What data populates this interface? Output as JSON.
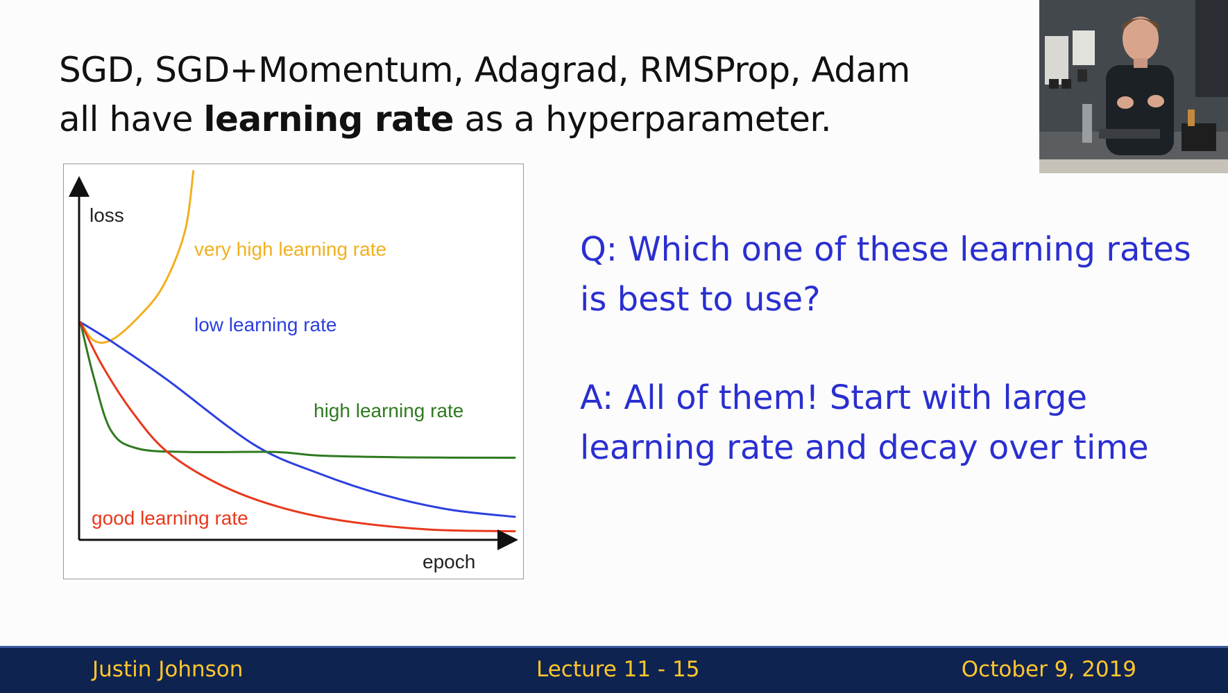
{
  "slide": {
    "title_line1": "SGD, SGD+Momentum, Adagrad, RMSProp, Adam",
    "title_line2_prefix": "all have ",
    "title_line2_bold": "learning rate",
    "title_line2_suffix": " as a hyperparameter.",
    "question_line1": "Q: Which one of these learning rates",
    "question_line2": "is best to use?",
    "answer_line1": "A: All of them! Start with large",
    "answer_line2": "learning rate and decay over time"
  },
  "footer": {
    "author": "Justin Johnson",
    "lecture": "Lecture 11 - 15",
    "date": "October 9, 2019"
  },
  "colors": {
    "very_high": "#f2b01e",
    "low": "#2b3fe0",
    "high": "#2e7a1f",
    "good": "#e8381c",
    "footer_bg": "#0f2350",
    "footer_text": "#ffc72c",
    "answer_text": "#2a2fd0"
  },
  "chart_data": {
    "type": "line",
    "xlabel": "epoch",
    "ylabel": "loss",
    "grid": false,
    "legend": "inline labels",
    "series": [
      {
        "name": "very high learning rate",
        "color": "#f2b01e",
        "points": [
          [
            0,
            0.6
          ],
          [
            0.03,
            0.55
          ],
          [
            0.07,
            0.55
          ],
          [
            0.13,
            0.61
          ],
          [
            0.19,
            0.7
          ],
          [
            0.24,
            0.85
          ],
          [
            0.26,
            1.02
          ]
        ]
      },
      {
        "name": "low learning rate",
        "color": "#2b3fe0",
        "points": [
          [
            0,
            0.6
          ],
          [
            0.08,
            0.54
          ],
          [
            0.2,
            0.44
          ],
          [
            0.4,
            0.26
          ],
          [
            0.55,
            0.18
          ],
          [
            0.7,
            0.12
          ],
          [
            0.85,
            0.08
          ],
          [
            1.0,
            0.06
          ]
        ]
      },
      {
        "name": "high learning rate",
        "color": "#2e7a1f",
        "points": [
          [
            0,
            0.6
          ],
          [
            0.03,
            0.45
          ],
          [
            0.07,
            0.3
          ],
          [
            0.13,
            0.25
          ],
          [
            0.25,
            0.24
          ],
          [
            0.45,
            0.24
          ],
          [
            0.55,
            0.23
          ],
          [
            0.75,
            0.225
          ],
          [
            1.0,
            0.224
          ]
        ]
      },
      {
        "name": "good learning rate",
        "color": "#e8381c",
        "points": [
          [
            0,
            0.6
          ],
          [
            0.05,
            0.48
          ],
          [
            0.12,
            0.35
          ],
          [
            0.2,
            0.24
          ],
          [
            0.32,
            0.15
          ],
          [
            0.45,
            0.09
          ],
          [
            0.6,
            0.05
          ],
          [
            0.8,
            0.025
          ],
          [
            1.0,
            0.02
          ]
        ]
      }
    ]
  }
}
